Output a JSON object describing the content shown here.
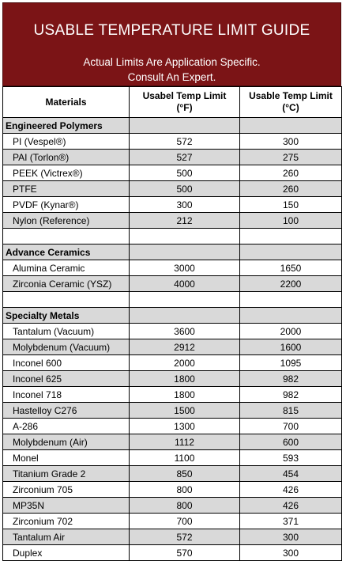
{
  "header": {
    "title": "USABLE TEMPERATURE LIMIT GUIDE",
    "subtitle_line1": "Actual Limits Are Application Specific.",
    "subtitle_line2": "Consult  An Expert."
  },
  "columns": {
    "materials": "Materials",
    "temp_f_line1": "Usabel Temp Limit",
    "temp_f_line2": "(°F)",
    "temp_c_line1": "Usable Temp Limit",
    "temp_c_line2": "(°C)"
  },
  "sections": [
    {
      "title": "Engineered Polymers",
      "rows": [
        {
          "name": "PI (Vespel®)",
          "f": "572",
          "c": "300"
        },
        {
          "name": "PAI (Torlon®)",
          "f": "527",
          "c": "275"
        },
        {
          "name": "PEEK (Victrex®)",
          "f": "500",
          "c": "260"
        },
        {
          "name": "PTFE",
          "f": "500",
          "c": "260"
        },
        {
          "name": "PVDF (Kynar®)",
          "f": "300",
          "c": "150"
        },
        {
          "name": "Nylon (Reference)",
          "f": "212",
          "c": "100"
        }
      ]
    },
    {
      "title": "Advance Ceramics",
      "rows": [
        {
          "name": "Alumina Ceramic",
          "f": "3000",
          "c": "1650"
        },
        {
          "name": "Zirconia Ceramic (YSZ)",
          "f": "4000",
          "c": "2200"
        }
      ]
    },
    {
      "title": "Specialty Metals",
      "rows": [
        {
          "name": "Tantalum (Vacuum)",
          "f": "3600",
          "c": "2000"
        },
        {
          "name": "Molybdenum (Vacuum)",
          "f": "2912",
          "c": "1600"
        },
        {
          "name": "Inconel 600",
          "f": "2000",
          "c": "1095"
        },
        {
          "name": "Inconel 625",
          "f": "1800",
          "c": "982"
        },
        {
          "name": "Inconel 718",
          "f": "1800",
          "c": "982"
        },
        {
          "name": "Hastelloy C276",
          "f": "1500",
          "c": "815"
        },
        {
          "name": "A-286",
          "f": "1300",
          "c": "700"
        },
        {
          "name": "Molybdenum (Air)",
          "f": "1112",
          "c": "600"
        },
        {
          "name": "Monel",
          "f": "1100",
          "c": "593"
        },
        {
          "name": "Titanium Grade 2",
          "f": "850",
          "c": "454"
        },
        {
          "name": "Zirconium 705",
          "f": "800",
          "c": "426"
        },
        {
          "name": "MP35N",
          "f": "800",
          "c": "426"
        },
        {
          "name": "Zirconium 702",
          "f": "700",
          "c": "371"
        },
        {
          "name": "Tantalum Air",
          "f": "572",
          "c": "300"
        },
        {
          "name": "Duplex",
          "f": "570",
          "c": "300"
        }
      ]
    }
  ]
}
